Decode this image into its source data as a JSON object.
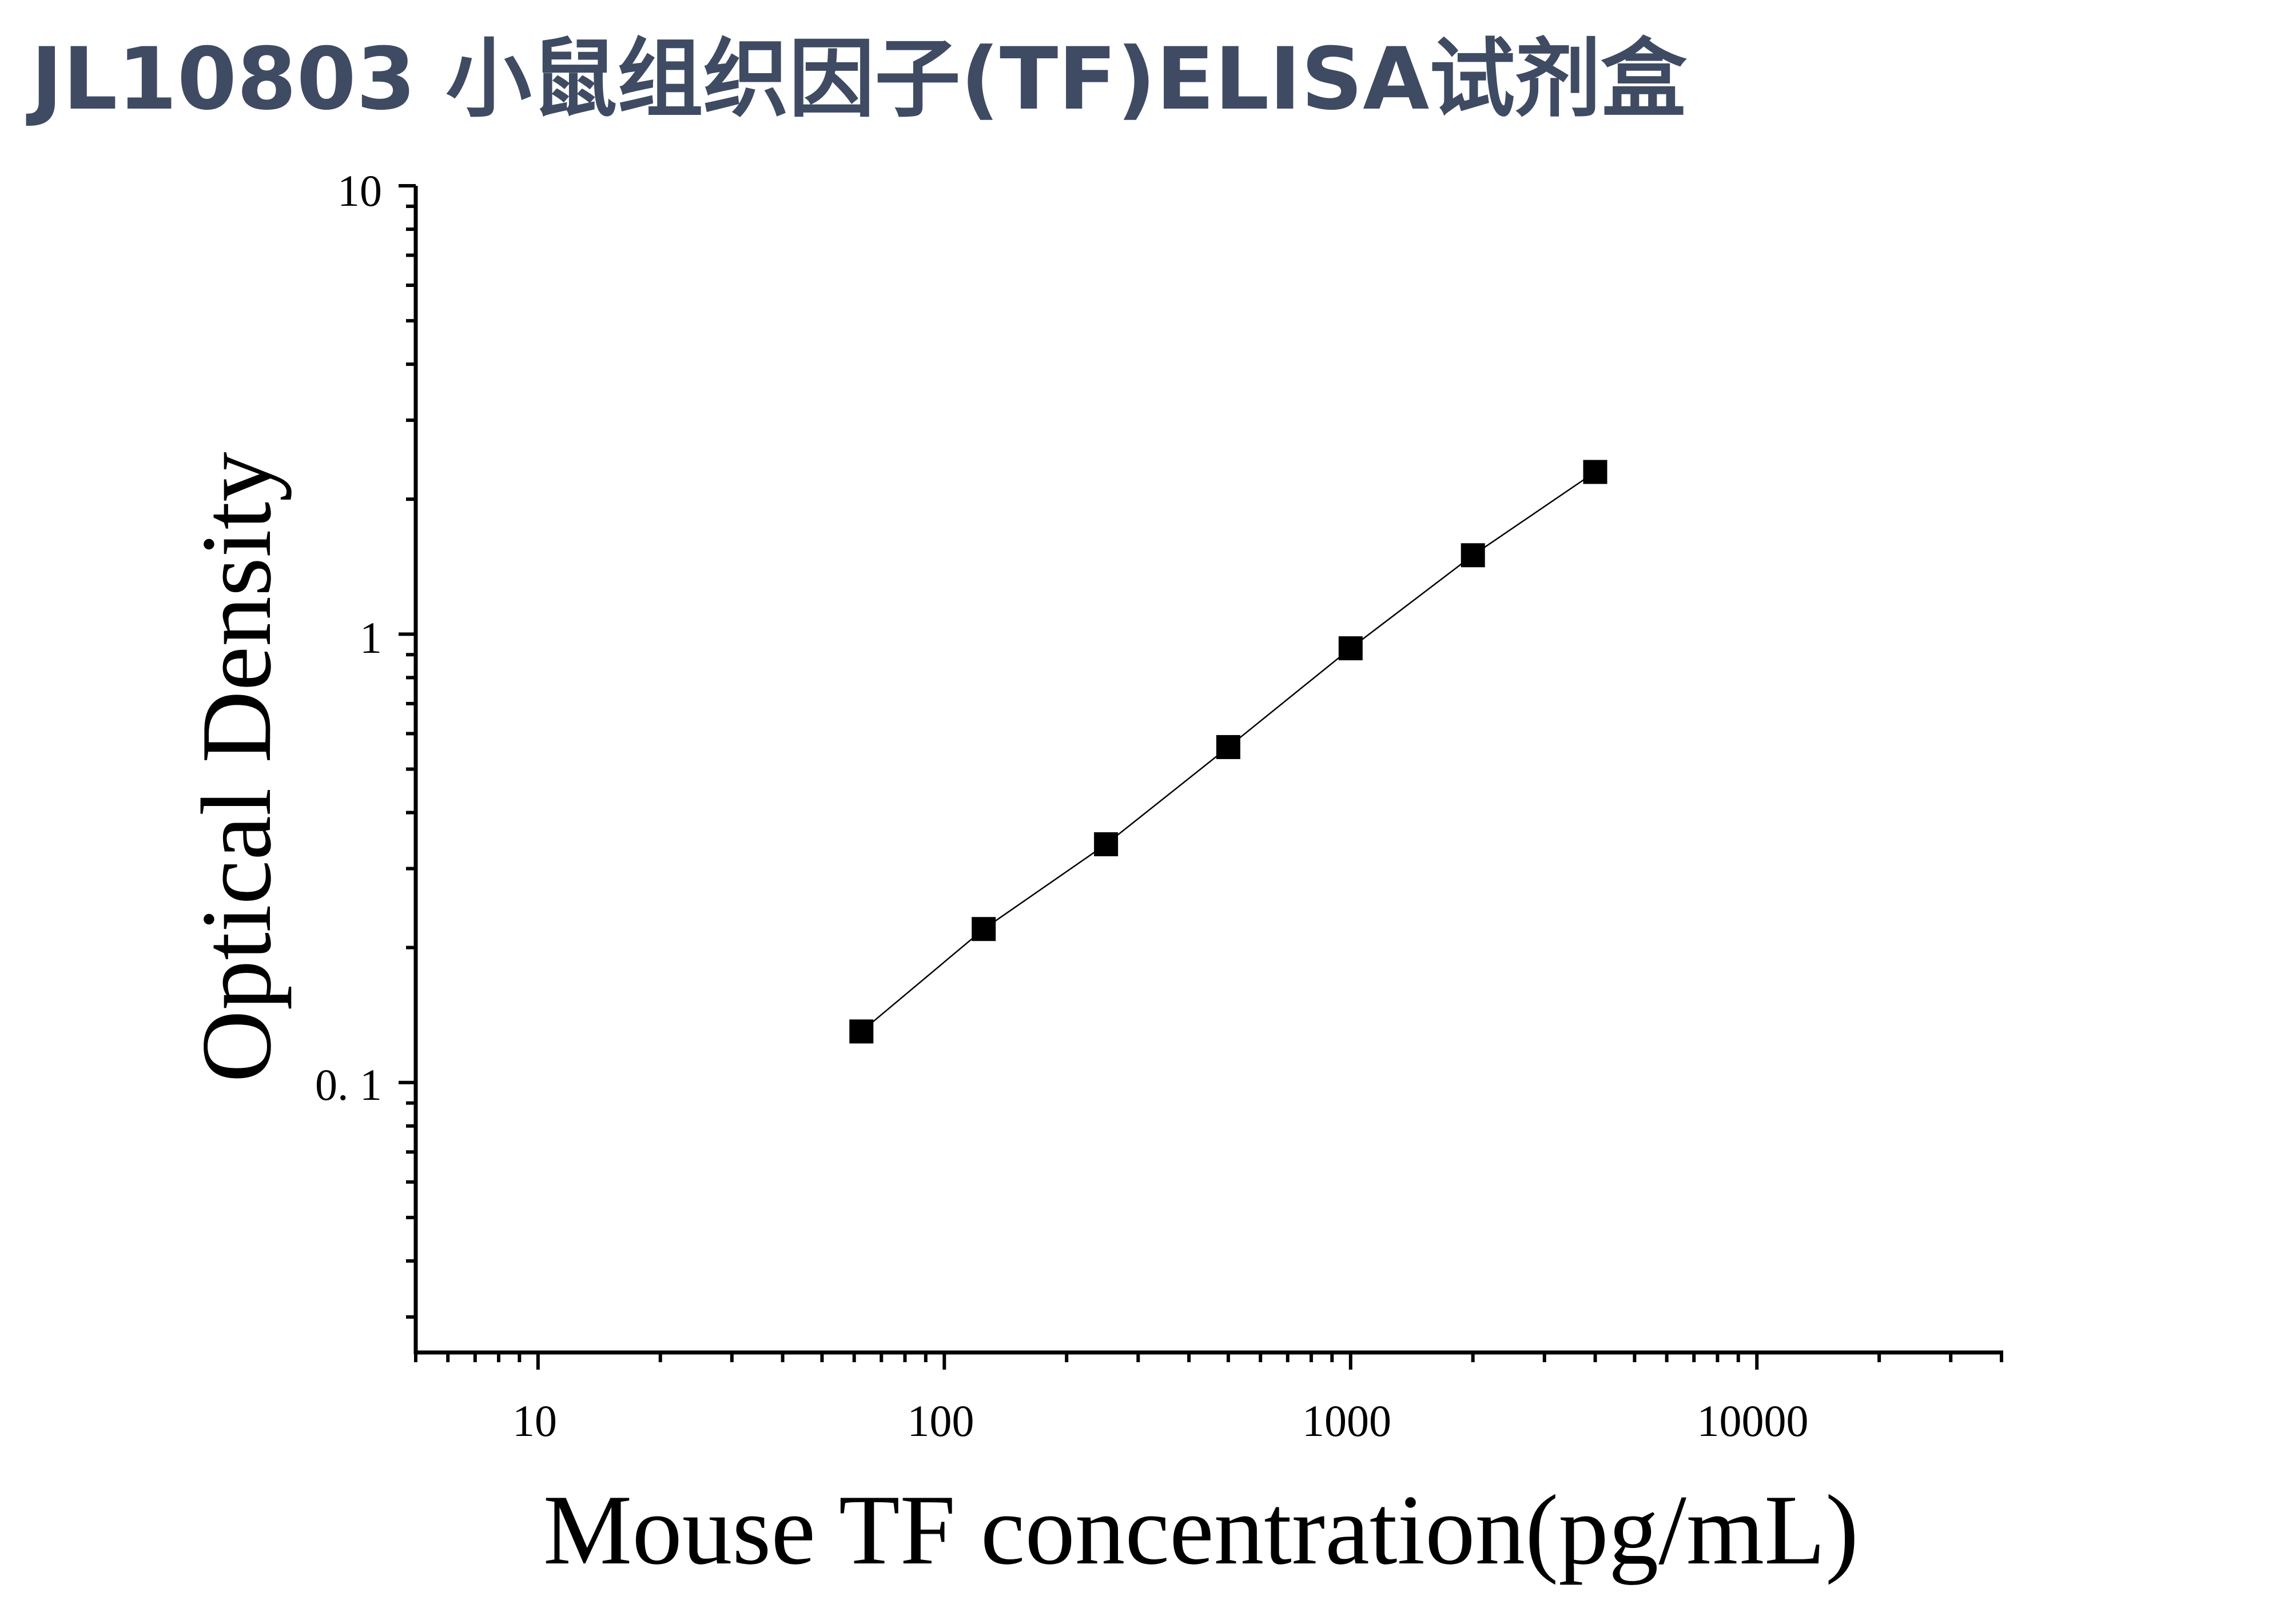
{
  "title": "JL10803 小鼠组织因子(TF)ELISA试剂盒",
  "chart_data": {
    "type": "scatter",
    "xlabel": "Mouse TF concentration(pg/mL)",
    "ylabel": "Optical Density",
    "x_scale": "log",
    "y_scale": "log",
    "xlim": [
      5,
      40000
    ],
    "ylim": [
      0.025,
      10
    ],
    "x_ticks": [
      "10",
      "100",
      "1000",
      "10000"
    ],
    "y_ticks": [
      "10",
      "1",
      "0. 1"
    ],
    "grid": false,
    "series": [
      {
        "marker": "square",
        "line": "fitted curve",
        "x": [
          62.5,
          125,
          250,
          500,
          1000,
          2000,
          4000
        ],
        "y": [
          0.13,
          0.22,
          0.34,
          0.56,
          0.93,
          1.5,
          2.3
        ]
      }
    ],
    "colors": {
      "marker": "#000000",
      "line": "#000000",
      "title": "#3f4b63"
    }
  }
}
